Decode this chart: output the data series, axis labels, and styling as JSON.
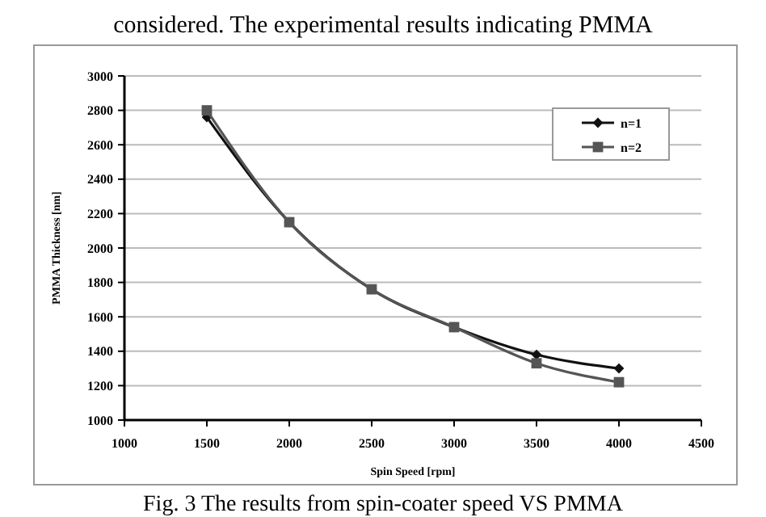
{
  "chart_data": {
    "type": "line",
    "xlabel": "Spin Speed [rpm]",
    "ylabel": "PMMA Thickness [nm]",
    "annotations": [
      "considered. The experimental results indicating PMMA",
      "Fig. 3 The results from spin-coater speed VS PMMA"
    ],
    "x": [
      1500,
      2000,
      2500,
      3000,
      3500,
      4000
    ],
    "series": [
      {
        "name": "n=1",
        "color": "#111111",
        "marker": "diamond",
        "values": [
          2760,
          2150,
          1760,
          1540,
          1380,
          1300
        ]
      },
      {
        "name": "n=2",
        "color": "#555555",
        "marker": "square",
        "values": [
          2800,
          2150,
          1760,
          1540,
          1330,
          1220
        ]
      }
    ],
    "xlim": [
      1000,
      4500
    ],
    "xticks": [
      1000,
      1500,
      2000,
      2500,
      3000,
      3500,
      4000,
      4500
    ],
    "ylim": [
      1000,
      3000
    ],
    "yticks": [
      1000,
      1200,
      1400,
      1600,
      1800,
      2000,
      2200,
      2400,
      2600,
      2800,
      3000
    ],
    "grid": "y",
    "legend": "top right",
    "line_style": "solid"
  }
}
